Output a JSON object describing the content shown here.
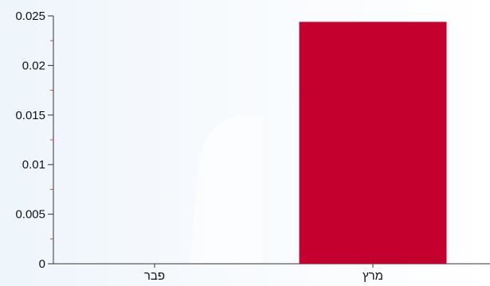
{
  "chart_data": {
    "type": "bar",
    "categories": [
      "פבר",
      "מרץ"
    ],
    "values": [
      0,
      0.0244
    ],
    "ylim": [
      0,
      0.025
    ],
    "yticks": [
      0,
      0.005,
      0.01,
      0.015,
      0.02,
      0.025
    ],
    "ytick_labels": [
      "0",
      "0.005",
      "0.01",
      "0.015",
      "0.02",
      "0.025"
    ],
    "title": "",
    "xlabel": "",
    "ylabel": "",
    "grid": false,
    "bar_color": "#c4002f",
    "minor_tick_color": "#d84a2a"
  }
}
